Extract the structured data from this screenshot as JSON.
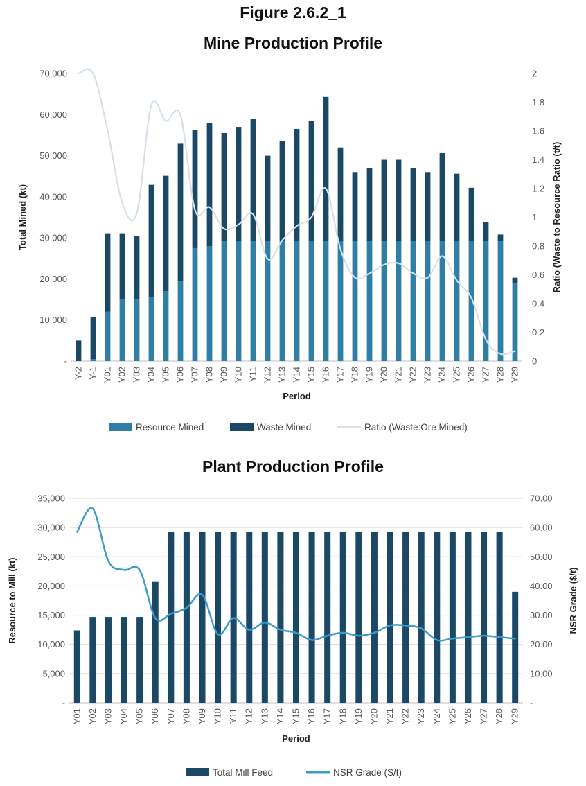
{
  "figure_label": "Figure 2.6.2_1",
  "chart_data": [
    {
      "type": "bar",
      "stacked": true,
      "title": "Mine Production Profile",
      "xlabel": "Period",
      "ylabel": "Total Mined (kt)",
      "y2label": "Ratio (Waste to Resource Ratio (t/t)",
      "ylim": [
        0,
        70000
      ],
      "y2lim": [
        0,
        2
      ],
      "yticks": [
        "-",
        "10,000",
        "20,000",
        "30,000",
        "40,000",
        "50,000",
        "60,000",
        "70,000"
      ],
      "y2ticks": [
        "0",
        "0.2",
        "0.4",
        "0.6",
        "0.8",
        "1",
        "1.2",
        "1.4",
        "1.6",
        "1.8",
        "2"
      ],
      "grid": true,
      "legend_position": "bottom",
      "categories": [
        "Y-2",
        "Y-1",
        "Y01",
        "Y02",
        "Y03",
        "Y04",
        "Y05",
        "Y06",
        "Y07",
        "Y08",
        "Y09",
        "Y10",
        "Y11",
        "Y12",
        "Y13",
        "Y14",
        "Y15",
        "Y16",
        "Y17",
        "Y18",
        "Y19",
        "Y20",
        "Y21",
        "Y22",
        "Y23",
        "Y24",
        "Y25",
        "Y26",
        "Y27",
        "Y28",
        "Y29"
      ],
      "series": [
        {
          "name": "Resource Mined",
          "kind": "bar",
          "color": "#2e7ea6",
          "values": [
            0,
            500,
            12000,
            15000,
            15000,
            15500,
            17000,
            19500,
            27500,
            28000,
            29200,
            29200,
            29200,
            29200,
            29200,
            29200,
            29200,
            29200,
            29200,
            29200,
            29200,
            29200,
            29200,
            29200,
            29200,
            29200,
            29200,
            29200,
            29200,
            29200,
            19000
          ]
        },
        {
          "name": "Waste Mined",
          "kind": "bar",
          "color": "#1b4965",
          "values": [
            5000,
            10300,
            19100,
            16100,
            15500,
            27400,
            28100,
            33400,
            28800,
            30000,
            26300,
            27800,
            29800,
            20800,
            24400,
            27300,
            29200,
            35100,
            22800,
            16800,
            17800,
            19800,
            19800,
            17800,
            16800,
            21400,
            16400,
            13000,
            4600,
            1600,
            1300
          ]
        },
        {
          "name": "Ratio (Waste:Ore Mined)",
          "kind": "line",
          "axis": "right",
          "color": "#d6e0e8",
          "values": [
            2.0,
            2.0,
            1.6,
            1.1,
            1.03,
            1.78,
            1.67,
            1.71,
            1.05,
            1.07,
            0.92,
            0.95,
            1.02,
            0.71,
            0.84,
            0.94,
            1.0,
            1.2,
            0.78,
            0.58,
            0.61,
            0.67,
            0.68,
            0.61,
            0.58,
            0.73,
            0.56,
            0.44,
            0.15,
            0.05,
            0.07
          ]
        }
      ]
    },
    {
      "type": "bar",
      "title": "Plant Production Profile",
      "xlabel": "Period",
      "ylabel": "Resource to Mill (kt)",
      "y2label": "NSR Grade ($/t)",
      "ylim": [
        0,
        35000
      ],
      "y2lim": [
        0,
        70
      ],
      "yticks": [
        "-",
        "5,000",
        "10,000",
        "15,000",
        "20,000",
        "25,000",
        "30,000",
        "35,000"
      ],
      "y2ticks": [
        "-",
        "10.00",
        "20.00",
        "30.00",
        "40.00",
        "50.00",
        "60.00",
        "70.00"
      ],
      "grid": true,
      "legend_position": "bottom",
      "categories": [
        "Y01",
        "Y02",
        "Y03",
        "Y04",
        "Y05",
        "Y06",
        "Y07",
        "Y08",
        "Y09",
        "Y10",
        "Y11",
        "Y12",
        "Y13",
        "Y14",
        "Y15",
        "Y16",
        "Y17",
        "Y18",
        "Y19",
        "Y20",
        "Y21",
        "Y22",
        "Y23",
        "Y24",
        "Y25",
        "Y26",
        "Y27",
        "Y28",
        "Y29"
      ],
      "series": [
        {
          "name": "Total Mill Feed",
          "kind": "bar",
          "color": "#1b4965",
          "values": [
            12400,
            14700,
            14700,
            14700,
            14700,
            20800,
            29300,
            29300,
            29300,
            29300,
            29300,
            29300,
            29300,
            29300,
            29300,
            29300,
            29300,
            29300,
            29300,
            29300,
            29300,
            29300,
            29300,
            29300,
            29300,
            29300,
            29300,
            29300,
            19000
          ]
        },
        {
          "name": "NSR Grade (S/t)",
          "kind": "line",
          "axis": "right",
          "color": "#3d9bc9",
          "values": [
            58.5,
            66.5,
            48.5,
            45.5,
            45.5,
            29.0,
            30.5,
            32.5,
            37.0,
            23.5,
            29.0,
            25.0,
            27.5,
            25.0,
            24.0,
            21.5,
            23.0,
            24.0,
            23.0,
            24.0,
            26.5,
            26.5,
            25.5,
            21.5,
            22.0,
            22.5,
            23.0,
            22.5,
            22.0
          ]
        }
      ]
    }
  ]
}
